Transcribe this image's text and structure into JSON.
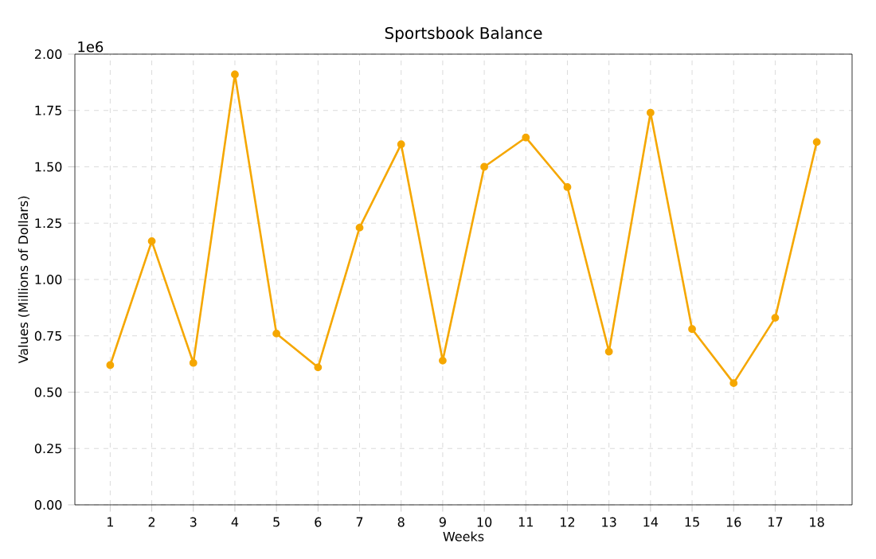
{
  "chart_data": {
    "type": "line",
    "title": "Sportsbook Balance",
    "xlabel": "Weeks",
    "ylabel": "Values (Millions of Dollars)",
    "x": [
      1,
      2,
      3,
      4,
      5,
      6,
      7,
      8,
      9,
      10,
      11,
      12,
      13,
      14,
      15,
      16,
      17,
      18
    ],
    "series": [
      {
        "color": "#f5a700",
        "values": [
          0.62,
          1.17,
          0.63,
          1.91,
          0.76,
          0.61,
          1.23,
          1.6,
          0.64,
          1.5,
          1.63,
          1.41,
          0.68,
          1.74,
          0.78,
          0.54,
          0.83,
          1.61
        ]
      }
    ],
    "xlim": [
      0.15,
      18.85
    ],
    "xticks": [
      1,
      2,
      3,
      4,
      5,
      6,
      7,
      8,
      9,
      10,
      11,
      12,
      13,
      14,
      15,
      16,
      17,
      18
    ],
    "ylim": [
      0,
      2
    ],
    "yticks": [
      {
        "value": 0,
        "label": "0.00"
      },
      0.25,
      {
        "value": 0.5,
        "label": "0.50"
      },
      0.75,
      {
        "value": 1,
        "label": "1.00"
      },
      1.25,
      {
        "value": 1.5,
        "label": "1.50"
      },
      1.75,
      {
        "value": 2,
        "label": "2.00"
      }
    ],
    "annotations": [
      "1e6"
    ],
    "grid": true,
    "marker": "circle",
    "line_style": "solid"
  }
}
